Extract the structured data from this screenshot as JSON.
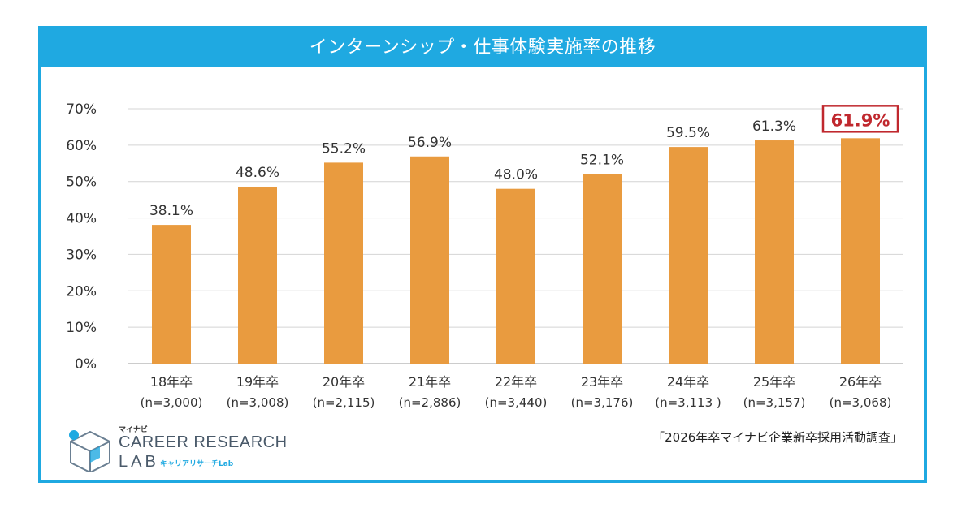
{
  "chart_data": {
    "type": "bar",
    "title": "インターンシップ・仕事体験実施率の推移",
    "categories": [
      "18年卒",
      "19年卒",
      "20年卒",
      "21年卒",
      "22年卒",
      "23年卒",
      "24年卒",
      "25年卒",
      "26年卒"
    ],
    "sample_sizes": [
      "(n=3,000)",
      "(n=3,008)",
      "(n=2,115)",
      "(n=2,886)",
      "(n=3,440)",
      "(n=3,176)",
      "(n=3,113 )",
      "(n=3,157)",
      "(n=3,068)"
    ],
    "values": [
      38.1,
      48.6,
      55.2,
      56.9,
      48.0,
      52.1,
      59.5,
      61.3,
      61.9
    ],
    "value_labels": [
      "38.1%",
      "48.6%",
      "55.2%",
      "56.9%",
      "48.0%",
      "52.1%",
      "59.5%",
      "61.3%",
      "61.9%"
    ],
    "y_ticks": [
      "0%",
      "10%",
      "20%",
      "30%",
      "40%",
      "50%",
      "60%",
      "70%"
    ],
    "ylim": [
      0,
      70
    ],
    "grid": true,
    "highlight_index": 8,
    "bar_color": "#e99b3f",
    "highlight_color": "#c0282e"
  },
  "source_note": "「2026年卒マイナビ企業新卒採用活動調査」",
  "logo": {
    "small_text": "マイナビ",
    "main_text": "CAREER RESEARCH",
    "lab_text": "LAB",
    "sub_text": "キャリアリサーチLab",
    "color": "#1fa9e1"
  }
}
